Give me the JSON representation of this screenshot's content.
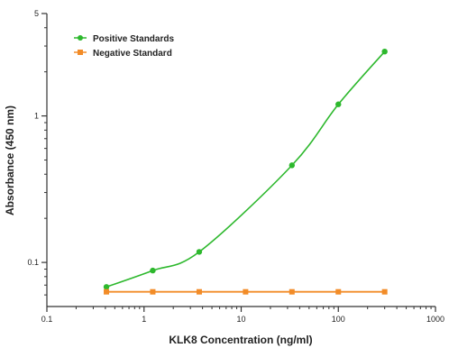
{
  "chart_data": {
    "type": "scatter",
    "xlabel": "KLK8 Concentration (ng/ml)",
    "ylabel": "Absorbance (450 nm)",
    "x_scale": "log",
    "y_scale": "log",
    "xlim": [
      0.1,
      1000
    ],
    "ylim": [
      0.05,
      5
    ],
    "x_ticks": [
      0.1,
      1,
      10,
      100,
      1000
    ],
    "x_tick_labels": [
      "0.1",
      "1",
      "10",
      "100",
      "1000"
    ],
    "y_ticks": [
      0.1,
      1,
      5
    ],
    "y_tick_labels": [
      "0.1",
      "1",
      "5"
    ],
    "grid": false,
    "legend_position": "top-left",
    "series": [
      {
        "name": "Positive Standards",
        "color": "#2db82d",
        "marker": "circle",
        "fit_curve": true,
        "x": [
          0.41,
          1.23,
          3.7,
          33.3,
          100,
          300
        ],
        "y": [
          0.068,
          0.088,
          0.118,
          0.46,
          1.2,
          2.75
        ]
      },
      {
        "name": "Negative Standard",
        "color": "#f28c28",
        "marker": "square",
        "fit_curve": false,
        "x": [
          0.41,
          1.23,
          3.7,
          11.1,
          33.3,
          100,
          300
        ],
        "y": [
          0.063,
          0.063,
          0.063,
          0.063,
          0.063,
          0.063,
          0.063
        ]
      }
    ]
  }
}
